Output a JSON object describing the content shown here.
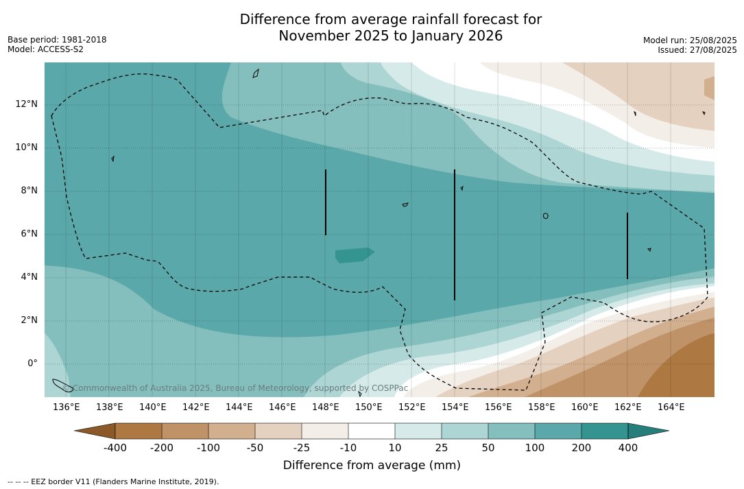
{
  "title": {
    "line1": "Difference from average rainfall forecast for",
    "line2": "November 2025 to January 2026"
  },
  "meta_left": {
    "base_period": "Base period: 1981-2018",
    "model": "Model: ACCESS-S2"
  },
  "meta_right": {
    "model_run": "Model run: 25/08/2025",
    "issued": "Issued: 27/08/2025"
  },
  "map": {
    "x_ticks": [
      "136°E",
      "138°E",
      "140°E",
      "142°E",
      "144°E",
      "146°E",
      "148°E",
      "150°E",
      "152°E",
      "154°E",
      "156°E",
      "158°E",
      "160°E",
      "162°E",
      "164°E"
    ],
    "y_ticks": [
      "12°N",
      "10°N",
      "8°N",
      "6°N",
      "4°N",
      "2°N",
      "0°"
    ],
    "copyright": "© Commonwealth of Australia 2025, Bureau of Meteorology, supported by COSPPac"
  },
  "colorbar": {
    "labels": [
      "-400",
      "-200",
      "-100",
      "-50",
      "-25",
      "-10",
      "10",
      "25",
      "50",
      "100",
      "200",
      "400"
    ],
    "colors": [
      "#8c5a28",
      "#ad7842",
      "#bf9268",
      "#d2b08f",
      "#e5d1bf",
      "#f3eee8",
      "#ffffff",
      "#d6ebe9",
      "#acd5d3",
      "#84bfbe",
      "#5aa8aa",
      "#34948f",
      "#257e7b"
    ],
    "title": "Difference from average (mm)"
  },
  "footer": "-- -- -- EEZ border V11 (Flanders Marine Institute, 2019)."
}
